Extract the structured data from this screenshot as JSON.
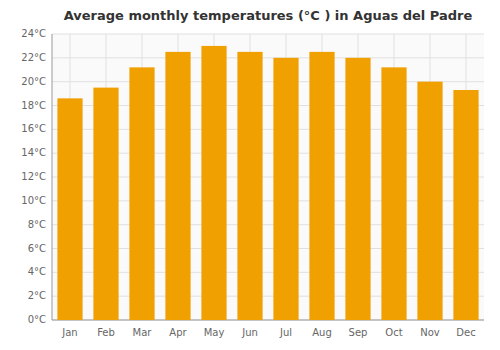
{
  "chart_data": {
    "type": "bar",
    "title": "Average monthly temperatures (°C ) in Aguas del Padre",
    "categories": [
      "Jan",
      "Feb",
      "Mar",
      "Apr",
      "May",
      "Jun",
      "Jul",
      "Aug",
      "Sep",
      "Oct",
      "Nov",
      "Dec"
    ],
    "values": [
      18.6,
      19.5,
      21.2,
      22.5,
      23.0,
      22.5,
      22.0,
      22.5,
      22.0,
      21.2,
      20.0,
      19.3
    ],
    "color": "#F0A000",
    "ylim": [
      0,
      24
    ],
    "yticks": [
      {
        "value": 0,
        "label": "0°C"
      },
      {
        "value": 2,
        "label": "2°C"
      },
      {
        "value": 4,
        "label": "4°C"
      },
      {
        "value": 6,
        "label": "6°C"
      },
      {
        "value": 8,
        "label": "8°C"
      },
      {
        "value": 10,
        "label": "10°C"
      },
      {
        "value": 12,
        "label": "12°C"
      },
      {
        "value": 14,
        "label": "14°C"
      },
      {
        "value": 16,
        "label": "16°C"
      },
      {
        "value": 18,
        "label": "18°C"
      },
      {
        "value": 20,
        "label": "20°C"
      },
      {
        "value": 22,
        "label": "22°C"
      },
      {
        "value": 24,
        "label": "24°C"
      }
    ],
    "grid": true
  }
}
